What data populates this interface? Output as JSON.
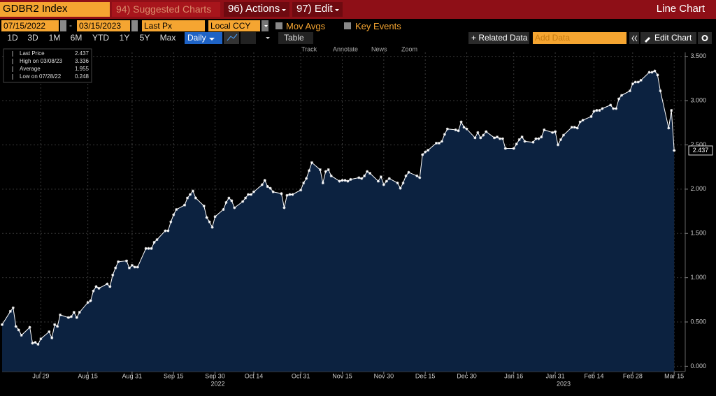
{
  "toolbar": {
    "security": "GDBR2 Index",
    "suggested": "94) Suggested Charts",
    "actions": "96) Actions",
    "edit": "97) Edit",
    "view": "Line Chart"
  },
  "controls": {
    "start": "07/15/2022",
    "separator": "-",
    "end": "03/15/2023",
    "field": "Last Px",
    "currency": "Local CCY",
    "mov_avgs": "Mov Avgs",
    "key_events": "Key Events"
  },
  "periods": [
    "1D",
    "3D",
    "1M",
    "6M",
    "YTD",
    "1Y",
    "5Y",
    "Max"
  ],
  "frequency": "Daily",
  "table": "Table",
  "related": "+ Related Data",
  "add_data": "Add Data",
  "edit_chart": "Edit Chart",
  "tools": [
    "Track",
    "Annotate",
    "News",
    "Zoom"
  ],
  "chart_data": {
    "type": "line",
    "legend": [
      {
        "label": "Last Price",
        "value": 2.437
      },
      {
        "label": "High on 03/08/23",
        "value": 3.336
      },
      {
        "label": "Average",
        "value": 1.955
      },
      {
        "label": "Low on 07/28/22",
        "value": 0.248
      }
    ],
    "x": [
      "2022-07-15",
      "2022-07-18",
      "2022-07-19",
      "2022-07-20",
      "2022-07-21",
      "2022-07-22",
      "2022-07-25",
      "2022-07-26",
      "2022-07-27",
      "2022-07-28",
      "2022-07-29",
      "2022-08-01",
      "2022-08-02",
      "2022-08-03",
      "2022-08-04",
      "2022-08-05",
      "2022-08-08",
      "2022-08-09",
      "2022-08-10",
      "2022-08-11",
      "2022-08-12",
      "2022-08-15",
      "2022-08-16",
      "2022-08-17",
      "2022-08-18",
      "2022-08-19",
      "2022-08-22",
      "2022-08-23",
      "2022-08-24",
      "2022-08-25",
      "2022-08-26",
      "2022-08-29",
      "2022-08-30",
      "2022-08-31",
      "2022-09-01",
      "2022-09-02",
      "2022-09-05",
      "2022-09-06",
      "2022-09-07",
      "2022-09-08",
      "2022-09-09",
      "2022-09-12",
      "2022-09-13",
      "2022-09-14",
      "2022-09-15",
      "2022-09-16",
      "2022-09-19",
      "2022-09-20",
      "2022-09-21",
      "2022-09-22",
      "2022-09-23",
      "2022-09-26",
      "2022-09-27",
      "2022-09-28",
      "2022-09-29",
      "2022-09-30",
      "2022-10-03",
      "2022-10-04",
      "2022-10-05",
      "2022-10-06",
      "2022-10-07",
      "2022-10-10",
      "2022-10-11",
      "2022-10-12",
      "2022-10-13",
      "2022-10-14",
      "2022-10-17",
      "2022-10-18",
      "2022-10-19",
      "2022-10-20",
      "2022-10-21",
      "2022-10-24",
      "2022-10-25",
      "2022-10-26",
      "2022-10-27",
      "2022-10-28",
      "2022-10-31",
      "2022-11-01",
      "2022-11-02",
      "2022-11-03",
      "2022-11-04",
      "2022-11-07",
      "2022-11-08",
      "2022-11-09",
      "2022-11-10",
      "2022-11-11",
      "2022-11-14",
      "2022-11-15",
      "2022-11-16",
      "2022-11-17",
      "2022-11-18",
      "2022-11-21",
      "2022-11-22",
      "2022-11-23",
      "2022-11-24",
      "2022-11-25",
      "2022-11-28",
      "2022-11-29",
      "2022-11-30",
      "2022-12-01",
      "2022-12-02",
      "2022-12-05",
      "2022-12-06",
      "2022-12-07",
      "2022-12-08",
      "2022-12-09",
      "2022-12-12",
      "2022-12-13",
      "2022-12-14",
      "2022-12-15",
      "2022-12-16",
      "2022-12-19",
      "2022-12-20",
      "2022-12-21",
      "2022-12-22",
      "2022-12-23",
      "2022-12-26",
      "2022-12-27",
      "2022-12-28",
      "2022-12-29",
      "2022-12-30",
      "2023-01-02",
      "2023-01-03",
      "2023-01-04",
      "2023-01-05",
      "2023-01-06",
      "2023-01-09",
      "2023-01-10",
      "2023-01-11",
      "2023-01-12",
      "2023-01-13",
      "2023-01-16",
      "2023-01-17",
      "2023-01-18",
      "2023-01-19",
      "2023-01-20",
      "2023-01-23",
      "2023-01-24",
      "2023-01-25",
      "2023-01-26",
      "2023-01-27",
      "2023-01-30",
      "2023-01-31",
      "2023-02-01",
      "2023-02-02",
      "2023-02-03",
      "2023-02-06",
      "2023-02-07",
      "2023-02-08",
      "2023-02-09",
      "2023-02-10",
      "2023-02-13",
      "2023-02-14",
      "2023-02-15",
      "2023-02-16",
      "2023-02-17",
      "2023-02-20",
      "2023-02-21",
      "2023-02-22",
      "2023-02-23",
      "2023-02-24",
      "2023-02-27",
      "2023-02-28",
      "2023-03-01",
      "2023-03-02",
      "2023-03-03",
      "2023-03-06",
      "2023-03-07",
      "2023-03-08",
      "2023-03-09",
      "2023-03-10",
      "2023-03-13",
      "2023-03-14",
      "2023-03-15"
    ],
    "series": [
      {
        "name": "Last Price",
        "color": "#ffffff",
        "fill": "#0c2240",
        "values": [
          0.47,
          0.62,
          0.66,
          0.45,
          0.41,
          0.35,
          0.44,
          0.26,
          0.27,
          0.248,
          0.31,
          0.39,
          0.32,
          0.47,
          0.45,
          0.58,
          0.55,
          0.56,
          0.61,
          0.55,
          0.61,
          0.72,
          0.74,
          0.85,
          0.9,
          0.88,
          0.93,
          0.9,
          1.03,
          1.11,
          1.18,
          1.19,
          1.11,
          1.14,
          1.12,
          1.12,
          1.33,
          1.33,
          1.33,
          1.4,
          1.43,
          1.53,
          1.53,
          1.63,
          1.71,
          1.77,
          1.82,
          1.9,
          1.94,
          1.98,
          1.9,
          1.81,
          1.68,
          1.63,
          1.57,
          1.69,
          1.77,
          1.85,
          1.9,
          1.87,
          1.79,
          1.86,
          1.9,
          1.94,
          1.94,
          1.97,
          2.05,
          2.1,
          2.03,
          2.01,
          1.97,
          1.95,
          1.79,
          1.93,
          1.94,
          1.94,
          1.99,
          2.07,
          2.12,
          2.21,
          2.3,
          2.22,
          2.07,
          2.2,
          2.22,
          2.15,
          2.09,
          2.1,
          2.1,
          2.09,
          2.11,
          2.13,
          2.12,
          2.15,
          2.2,
          2.18,
          2.09,
          2.14,
          2.05,
          2.09,
          2.12,
          2.07,
          2.01,
          2.07,
          2.15,
          2.19,
          2.15,
          2.13,
          2.39,
          2.42,
          2.44,
          2.52,
          2.52,
          2.54,
          2.62,
          2.68,
          2.67,
          2.66,
          2.76,
          2.7,
          2.68,
          2.58,
          2.64,
          2.58,
          2.61,
          2.65,
          2.58,
          2.59,
          2.57,
          2.57,
          2.46,
          2.46,
          2.51,
          2.56,
          2.59,
          2.54,
          2.53,
          2.57,
          2.57,
          2.59,
          2.67,
          2.64,
          2.65,
          2.5,
          2.56,
          2.61,
          2.7,
          2.7,
          2.69,
          2.76,
          2.78,
          2.82,
          2.88,
          2.89,
          2.89,
          2.91,
          2.95,
          2.91,
          2.91,
          3.02,
          3.06,
          3.11,
          3.19,
          3.21,
          3.21,
          3.23,
          3.32,
          3.32,
          3.336,
          3.29,
          3.11,
          2.69,
          2.89,
          2.437
        ]
      }
    ],
    "xlim": [
      "2022-07-15",
      "2023-03-19"
    ],
    "xticks": [
      {
        "value": "2022-07-29",
        "label": "Jul 29"
      },
      {
        "value": "2022-08-15",
        "label": "Aug 15"
      },
      {
        "value": "2022-08-31",
        "label": "Aug 31"
      },
      {
        "value": "2022-09-15",
        "label": "Sep 15"
      },
      {
        "value": "2022-09-30",
        "label": "Sep 30"
      },
      {
        "value": "2022-10-14",
        "label": "Oct 14"
      },
      {
        "value": "2022-10-31",
        "label": "Oct 31"
      },
      {
        "value": "2022-11-15",
        "label": "Nov 15"
      },
      {
        "value": "2022-11-30",
        "label": "Nov 30"
      },
      {
        "value": "2022-12-15",
        "label": "Dec 15"
      },
      {
        "value": "2022-12-30",
        "label": "Dec 30"
      },
      {
        "value": "2023-01-16",
        "label": "Jan 16"
      },
      {
        "value": "2023-01-31",
        "label": "Jan 31"
      },
      {
        "value": "2023-02-14",
        "label": "Feb 14"
      },
      {
        "value": "2023-02-28",
        "label": "Feb 28"
      },
      {
        "value": "2023-03-15",
        "label": "Mar 15"
      }
    ],
    "years": [
      {
        "value": "2022-10-01",
        "label": "2022"
      },
      {
        "value": "2023-02-03",
        "label": "2023"
      }
    ],
    "ylim": [
      -0.06,
      3.545
    ],
    "yticks": [
      {
        "value": 0,
        "label": "0.000"
      },
      {
        "value": 0.5,
        "label": "0.500"
      },
      {
        "value": 1,
        "label": "1.000"
      },
      {
        "value": 1.5,
        "label": "1.500"
      },
      {
        "value": 2,
        "label": "2.000"
      },
      {
        "value": 2.5,
        "label": "2.500"
      },
      {
        "value": 3,
        "label": "3.000"
      },
      {
        "value": 3.5,
        "label": "3.500"
      }
    ],
    "grid": true
  }
}
